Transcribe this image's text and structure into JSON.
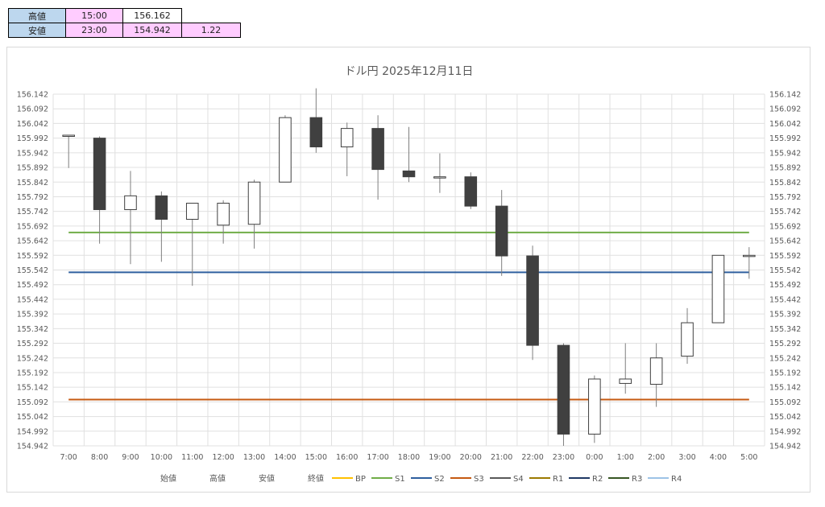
{
  "summary": {
    "high": {
      "label": "高値",
      "time": "15:00",
      "value": "156.162"
    },
    "low": {
      "label": "安値",
      "time": "23:00",
      "value": "154.942",
      "range": "1.22"
    }
  },
  "chart_data": {
    "type": "candlestick",
    "title": "ドル円 2025年12月11日",
    "ylim": [
      154.942,
      156.142
    ],
    "yticks": [
      "156.142",
      "156.092",
      "156.042",
      "155.992",
      "155.942",
      "155.892",
      "155.842",
      "155.792",
      "155.742",
      "155.692",
      "155.642",
      "155.592",
      "155.542",
      "155.492",
      "155.442",
      "155.392",
      "155.342",
      "155.292",
      "155.242",
      "155.192",
      "155.142",
      "155.092",
      "155.042",
      "154.992",
      "154.942"
    ],
    "categories": [
      "7:00",
      "8:00",
      "9:00",
      "10:00",
      "11:00",
      "12:00",
      "13:00",
      "14:00",
      "15:00",
      "16:00",
      "17:00",
      "18:00",
      "19:00",
      "20:00",
      "21:00",
      "22:00",
      "23:00",
      "0:00",
      "1:00",
      "2:00",
      "3:00",
      "4:00",
      "5:00"
    ],
    "series": [
      {
        "name": "始値",
        "values": [
          156.002,
          155.992,
          155.748,
          155.795,
          155.715,
          155.695,
          155.698,
          155.842,
          156.062,
          155.962,
          156.025,
          155.88,
          155.86,
          155.86,
          155.76,
          155.59,
          155.285,
          154.982,
          155.155,
          155.152,
          155.248,
          155.362,
          155.592
        ]
      },
      {
        "name": "高値",
        "values": [
          156.002,
          155.998,
          155.88,
          155.81,
          155.77,
          155.78,
          155.85,
          156.07,
          156.162,
          156.045,
          156.07,
          156.03,
          155.94,
          155.875,
          155.815,
          155.625,
          155.292,
          155.182,
          155.292,
          155.292,
          155.412,
          155.592,
          155.62
        ]
      },
      {
        "name": "安値",
        "values": [
          155.89,
          155.632,
          155.562,
          155.57,
          155.488,
          155.632,
          155.615,
          155.842,
          155.942,
          155.862,
          155.782,
          155.842,
          155.805,
          155.75,
          155.522,
          155.235,
          154.942,
          154.952,
          155.12,
          155.075,
          155.222,
          155.362,
          155.512
        ]
      },
      {
        "name": "終値",
        "values": [
          156.002,
          155.748,
          155.795,
          155.715,
          155.77,
          155.77,
          155.842,
          156.062,
          155.962,
          156.025,
          155.885,
          155.86,
          155.86,
          155.76,
          155.59,
          155.285,
          154.982,
          155.17,
          155.17,
          155.242,
          155.362,
          155.592,
          155.592
        ]
      }
    ],
    "lines": [
      {
        "name": "BP",
        "value": null,
        "color": "#ffc000"
      },
      {
        "name": "S1",
        "value": 155.67,
        "color": "#70ad47"
      },
      {
        "name": "S2",
        "value": 155.534,
        "color": "#2e5f9e"
      },
      {
        "name": "S3",
        "value": 155.1,
        "color": "#c55a11"
      },
      {
        "name": "S4",
        "value": null,
        "color": "#595959"
      },
      {
        "name": "R1",
        "value": null,
        "color": "#9c7a00"
      },
      {
        "name": "R2",
        "value": null,
        "color": "#1f3864"
      },
      {
        "name": "R3",
        "value": null,
        "color": "#375623"
      },
      {
        "name": "R4",
        "value": null,
        "color": "#9dc3e6"
      }
    ],
    "colors": {
      "up": "#ffffff",
      "down": "#404040",
      "wick": "#7f7f7f",
      "grid": "#e0e0e0"
    },
    "legend_position": "bottom"
  }
}
